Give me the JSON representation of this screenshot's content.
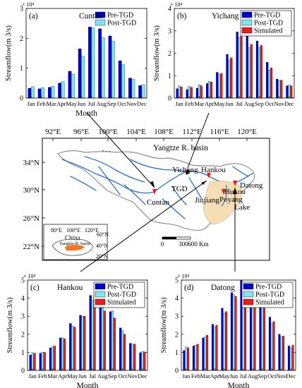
{
  "colors": {
    "pre": "#0000cc",
    "post": "#80e4f4",
    "sim": "#e81c1c",
    "river": "#2a6fcf",
    "lake": "#f6deb4",
    "basin_border": "#8f8f8f",
    "china_fill": "#ffffff",
    "basin_fill_inset": "#f07820",
    "station": "#e81c1c",
    "arrow": "#000000"
  },
  "map": {
    "title": "Yangtze R. basin",
    "lon_labels": [
      "92°E",
      "96°E",
      "100°E",
      "104°E",
      "108°E",
      "112°E",
      "116°E",
      "120°E"
    ],
    "lat_labels": [
      "34°N",
      "30°N",
      "26°N",
      "22°N"
    ],
    "north_label": "N",
    "stations": [
      "Cuntan",
      "Yichang",
      "Hankou",
      "Datong",
      "Hukou"
    ],
    "place_labels": [
      "TGD",
      "Jiujiang",
      "Poyang",
      "Lake"
    ],
    "scale_labels": [
      "0",
      "300",
      "600 Km"
    ],
    "inset": {
      "title": "China",
      "basin_label": "Yangtze R. basin",
      "lon_labels": [
        "80°E",
        "100°E",
        "120°E"
      ],
      "lat_labels": [
        "60°N",
        "40°N",
        "20°N"
      ]
    }
  },
  "chart_data": [
    {
      "type": "bar",
      "panel": "(a)",
      "title": "Cuntan",
      "xlabel": "Month",
      "ylabel": "Streamflow(m 3/s)",
      "exponent": "× 10⁴",
      "ylim": [
        0,
        3
      ],
      "yticks": [
        0,
        1,
        2,
        3
      ],
      "categories": [
        "Jan",
        "Feb",
        "Mar",
        "Apr",
        "May",
        "Jun",
        "Jul",
        "Aug",
        "Sep",
        "Oct",
        "Nov",
        "Dec"
      ],
      "legend": "top-right",
      "series": [
        {
          "name": "Pre-TGD",
          "values": [
            0.33,
            0.31,
            0.36,
            0.5,
            0.9,
            1.65,
            2.38,
            2.32,
            2.08,
            1.25,
            0.67,
            0.42
          ]
        },
        {
          "name": "Post-TGD",
          "values": [
            0.38,
            0.35,
            0.4,
            0.55,
            0.8,
            1.4,
            2.35,
            2.03,
            1.9,
            1.12,
            0.62,
            0.45
          ]
        }
      ]
    },
    {
      "type": "bar",
      "panel": "(b)",
      "title": "Yichang",
      "xlabel": "",
      "ylabel": "Streamflow(m 3/s)",
      "exponent": "× 10⁴",
      "ylim": [
        0,
        4
      ],
      "yticks": [
        0,
        1,
        2,
        3,
        4
      ],
      "categories": [
        "Jan",
        "Feb",
        "Mar",
        "Apr",
        "May",
        "Jun",
        "Jul",
        "Aug",
        "Sep",
        "Oct",
        "Nov",
        "Dec"
      ],
      "legend": "top-right",
      "series": [
        {
          "name": "Pre-TGD",
          "values": [
            0.42,
            0.38,
            0.44,
            0.65,
            1.15,
            1.95,
            2.95,
            2.8,
            2.55,
            1.6,
            0.85,
            0.55
          ]
        },
        {
          "name": "Post-TGD",
          "values": [
            0.55,
            0.52,
            0.6,
            0.75,
            1.05,
            1.7,
            2.7,
            2.25,
            2.25,
            1.25,
            0.78,
            0.58
          ]
        },
        {
          "name": "Simulated",
          "values": [
            0.5,
            0.48,
            0.55,
            0.72,
            1.1,
            1.8,
            2.75,
            2.4,
            2.35,
            1.35,
            0.8,
            0.55
          ]
        }
      ]
    },
    {
      "type": "bar",
      "panel": "(c)",
      "title": "Hankou",
      "xlabel": "Month",
      "ylabel": "Streamflow(m 3/s)",
      "exponent": "× 10⁴",
      "ylim": [
        0,
        5
      ],
      "yticks": [
        0,
        1,
        2,
        3,
        4,
        5
      ],
      "categories": [
        "Jan",
        "Feb",
        "Mar",
        "Apr",
        "May",
        "Jun",
        "Jul",
        "Aug",
        "Sep",
        "Oct",
        "Nov",
        "Dec"
      ],
      "legend": "top-right",
      "series": [
        {
          "name": "Pre-TGD",
          "values": [
            0.85,
            0.95,
            1.25,
            1.8,
            2.6,
            3.05,
            4.15,
            3.7,
            3.25,
            2.35,
            1.5,
            0.98
          ]
        },
        {
          "name": "Post-TGD",
          "values": [
            0.98,
            1.0,
            1.3,
            1.8,
            2.45,
            3.0,
            3.9,
            3.45,
            3.3,
            2.2,
            1.45,
            1.05
          ]
        },
        {
          "name": "Simulated",
          "values": [
            0.95,
            1.0,
            1.35,
            1.75,
            2.4,
            3.0,
            4.05,
            3.3,
            2.9,
            2.0,
            1.45,
            1.02
          ]
        }
      ]
    },
    {
      "type": "bar",
      "panel": "(d)",
      "title": "Datong",
      "xlabel": "Month",
      "ylabel": "Streamflow(m 3/s)",
      "exponent": "× 10⁴",
      "ylim": [
        0,
        5
      ],
      "yticks": [
        0,
        1,
        2,
        3,
        4,
        5
      ],
      "categories": [
        "Jan",
        "Feb",
        "Mar",
        "Apr",
        "May",
        "Jun",
        "Jul",
        "Aug",
        "Sep",
        "Oct",
        "Nov",
        "Dec"
      ],
      "legend": "top-right",
      "series": [
        {
          "name": "Pre-TGD",
          "values": [
            1.1,
            1.35,
            1.8,
            2.55,
            3.45,
            4.3,
            5.0,
            4.4,
            3.8,
            2.95,
            2.0,
            1.35
          ]
        },
        {
          "name": "Post-TGD",
          "values": [
            1.3,
            1.4,
            1.85,
            2.4,
            3.15,
            4.2,
            4.3,
            4.1,
            3.6,
            2.6,
            1.85,
            1.25
          ]
        },
        {
          "name": "Simulated",
          "values": [
            1.25,
            1.45,
            1.95,
            2.5,
            3.25,
            4.1,
            4.55,
            4.2,
            3.45,
            2.7,
            1.9,
            1.4
          ]
        }
      ]
    }
  ]
}
